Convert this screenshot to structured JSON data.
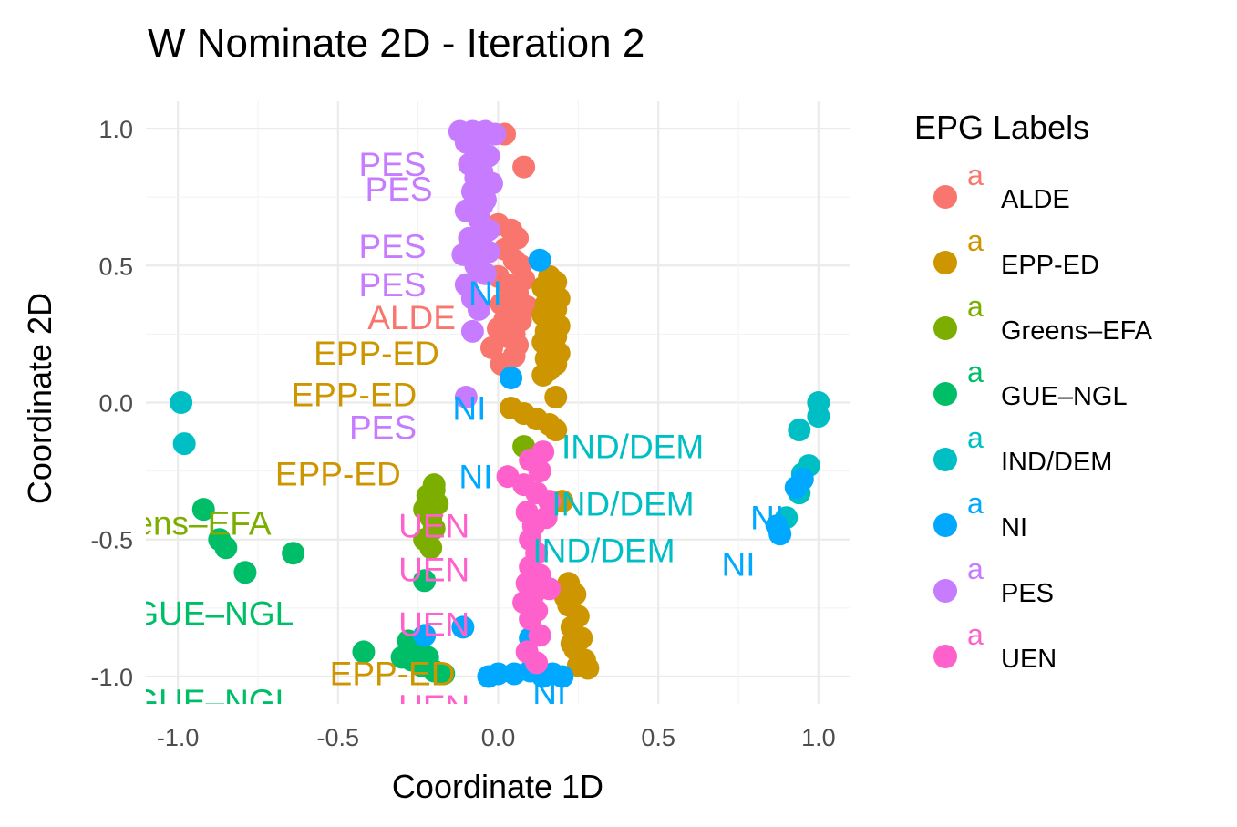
{
  "chart_data": {
    "type": "scatter",
    "title": "W Nominate 2D - Iteration 2",
    "xlabel": "Coordinate 1D",
    "ylabel": "Coordinate 2D",
    "xlim": [
      -1.1,
      1.1
    ],
    "ylim": [
      -1.1,
      1.1
    ],
    "xticks": [
      -1.0,
      -0.5,
      0.0,
      0.5,
      1.0
    ],
    "yticks": [
      -1.0,
      -0.5,
      0.0,
      0.5,
      1.0
    ],
    "xtick_labels": [
      "-1.0",
      "-0.5",
      "0.0",
      "0.5",
      "1.0"
    ],
    "ytick_labels": [
      "1.0",
      "0.5",
      "0.0",
      "-0.5",
      "-1.0"
    ],
    "grid": true,
    "legend": {
      "title": "EPG Labels",
      "placement": "right",
      "key_glyph": "a",
      "items": [
        {
          "name": "ALDE",
          "color": "#F8766D"
        },
        {
          "name": "EPP-ED",
          "color": "#CD9600"
        },
        {
          "name": "Greens–EFA",
          "color": "#7CAE00"
        },
        {
          "name": "GUE–NGL",
          "color": "#00BE67"
        },
        {
          "name": "IND/DEM",
          "color": "#00BFC4"
        },
        {
          "name": "NI",
          "color": "#00A9FF"
        },
        {
          "name": "PES",
          "color": "#C77CFF"
        },
        {
          "name": "UEN",
          "color": "#FF61CC"
        }
      ]
    },
    "series": [
      {
        "name": "ALDE",
        "color": "#F8766D",
        "points": [
          [
            0.02,
            0.98
          ],
          [
            0.08,
            0.86
          ],
          [
            0.0,
            0.65
          ],
          [
            0.04,
            0.63
          ],
          [
            0.06,
            0.6
          ],
          [
            0.02,
            0.56
          ],
          [
            0.05,
            0.52
          ],
          [
            0.07,
            0.5
          ],
          [
            0.0,
            0.46
          ],
          [
            0.03,
            0.43
          ],
          [
            0.06,
            0.4
          ],
          [
            0.01,
            0.36
          ],
          [
            0.04,
            0.33
          ],
          [
            0.07,
            0.3
          ],
          [
            0.0,
            0.27
          ],
          [
            0.03,
            0.24
          ],
          [
            0.06,
            0.21
          ],
          [
            -0.02,
            0.2
          ],
          [
            0.05,
            0.17
          ],
          [
            0.01,
            0.14
          ],
          [
            0.04,
            0.38
          ],
          [
            0.08,
            0.45
          ],
          [
            0.09,
            0.35
          ],
          [
            0.02,
            0.3
          ],
          [
            0.05,
            0.25
          ]
        ]
      },
      {
        "name": "EPP-ED",
        "color": "#CD9600",
        "points": [
          [
            0.16,
            0.46
          ],
          [
            0.18,
            0.44
          ],
          [
            0.14,
            0.42
          ],
          [
            0.17,
            0.4
          ],
          [
            0.19,
            0.38
          ],
          [
            0.15,
            0.36
          ],
          [
            0.18,
            0.34
          ],
          [
            0.14,
            0.32
          ],
          [
            0.17,
            0.3
          ],
          [
            0.19,
            0.28
          ],
          [
            0.15,
            0.26
          ],
          [
            0.18,
            0.24
          ],
          [
            0.14,
            0.22
          ],
          [
            0.17,
            0.2
          ],
          [
            0.19,
            0.18
          ],
          [
            0.15,
            0.16
          ],
          [
            0.18,
            0.14
          ],
          [
            0.16,
            0.12
          ],
          [
            0.14,
            0.1
          ],
          [
            0.18,
            0.02
          ],
          [
            0.04,
            -0.02
          ],
          [
            0.08,
            -0.04
          ],
          [
            0.12,
            -0.06
          ],
          [
            0.16,
            -0.08
          ],
          [
            0.18,
            -0.1
          ],
          [
            0.2,
            -0.36
          ],
          [
            0.22,
            -0.66
          ],
          [
            0.24,
            -0.7
          ],
          [
            0.22,
            -0.74
          ],
          [
            0.25,
            -0.78
          ],
          [
            0.23,
            -0.82
          ],
          [
            0.26,
            -0.86
          ],
          [
            0.24,
            -0.9
          ],
          [
            0.27,
            -0.94
          ],
          [
            0.25,
            -0.96
          ],
          [
            0.28,
            -0.97
          ],
          [
            0.21,
            -0.71
          ],
          [
            0.23,
            -0.88
          ]
        ]
      },
      {
        "name": "Greens–EFA",
        "color": "#7CAE00",
        "points": [
          [
            0.08,
            -0.16
          ],
          [
            -0.2,
            -0.3
          ],
          [
            -0.22,
            -0.34
          ],
          [
            -0.19,
            -0.37
          ],
          [
            -0.23,
            -0.39
          ],
          [
            -0.21,
            -0.42
          ],
          [
            -0.2,
            -0.46
          ],
          [
            -0.23,
            -0.5
          ],
          [
            -0.21,
            -0.53
          ],
          [
            -0.22,
            -0.36
          ],
          [
            -0.2,
            -0.32
          ]
        ]
      },
      {
        "name": "GUE–NGL",
        "color": "#00BE67",
        "points": [
          [
            -0.92,
            -0.39
          ],
          [
            -0.87,
            -0.5
          ],
          [
            -0.85,
            -0.53
          ],
          [
            -0.79,
            -0.62
          ],
          [
            -0.64,
            -0.55
          ],
          [
            -0.23,
            -0.65
          ],
          [
            -0.42,
            -0.91
          ],
          [
            -0.28,
            -0.87
          ],
          [
            -0.25,
            -0.89
          ],
          [
            -0.27,
            -0.94
          ],
          [
            -0.24,
            -0.96
          ],
          [
            -0.2,
            -0.98
          ],
          [
            -0.17,
            -0.99
          ],
          [
            -0.3,
            -0.93
          ],
          [
            -0.22,
            -0.93
          ]
        ]
      },
      {
        "name": "IND/DEM",
        "color": "#00BFC4",
        "points": [
          [
            -0.99,
            0.0
          ],
          [
            -0.98,
            -0.15
          ],
          [
            1.0,
            0.0
          ],
          [
            1.0,
            -0.05
          ],
          [
            0.94,
            -0.1
          ],
          [
            0.97,
            -0.23
          ],
          [
            0.95,
            -0.26
          ],
          [
            0.94,
            -0.33
          ],
          [
            0.9,
            -0.42
          ]
        ]
      },
      {
        "name": "NI",
        "color": "#00A9FF",
        "points": [
          [
            0.13,
            0.52
          ],
          [
            0.04,
            0.09
          ],
          [
            0.1,
            -0.86
          ],
          [
            -0.23,
            -0.85
          ],
          [
            -0.11,
            -0.82
          ],
          [
            0.0,
            -0.99
          ],
          [
            0.05,
            -0.99
          ],
          [
            0.1,
            -0.98
          ],
          [
            0.14,
            -1.0
          ],
          [
            0.17,
            -0.99
          ],
          [
            0.2,
            -1.0
          ],
          [
            -0.03,
            -1.0
          ],
          [
            0.12,
            -0.98
          ],
          [
            0.88,
            -0.48
          ],
          [
            0.87,
            -0.45
          ],
          [
            0.95,
            -0.28
          ],
          [
            0.93,
            -0.31
          ]
        ]
      },
      {
        "name": "PES",
        "color": "#C77CFF",
        "points": [
          [
            -0.12,
            0.99
          ],
          [
            -0.08,
            0.99
          ],
          [
            -0.04,
            0.99
          ],
          [
            -0.01,
            0.98
          ],
          [
            -0.1,
            0.95
          ],
          [
            -0.06,
            0.93
          ],
          [
            -0.03,
            0.9
          ],
          [
            -0.09,
            0.87
          ],
          [
            -0.05,
            0.84
          ],
          [
            -0.02,
            0.8
          ],
          [
            -0.08,
            0.77
          ],
          [
            -0.04,
            0.74
          ],
          [
            -0.1,
            0.7
          ],
          [
            -0.06,
            0.67
          ],
          [
            -0.03,
            0.63
          ],
          [
            -0.09,
            0.6
          ],
          [
            -0.05,
            0.57
          ],
          [
            -0.11,
            0.54
          ],
          [
            -0.07,
            0.5
          ],
          [
            -0.04,
            0.47
          ],
          [
            -0.1,
            0.43
          ],
          [
            -0.08,
            0.38
          ],
          [
            -0.06,
            0.34
          ],
          [
            -0.08,
            0.26
          ],
          [
            -0.1,
            0.02
          ],
          [
            -0.05,
            0.72
          ],
          [
            -0.07,
            0.82
          ],
          [
            -0.03,
            0.55
          ]
        ]
      },
      {
        "name": "UEN",
        "color": "#FF61CC",
        "points": [
          [
            0.14,
            -0.18
          ],
          [
            0.1,
            -0.21
          ],
          [
            0.13,
            -0.25
          ],
          [
            0.03,
            -0.27
          ],
          [
            0.08,
            -0.3
          ],
          [
            0.12,
            -0.33
          ],
          [
            0.16,
            -0.36
          ],
          [
            0.09,
            -0.4
          ],
          [
            0.11,
            -0.45
          ],
          [
            0.1,
            -0.5
          ],
          [
            0.12,
            -0.55
          ],
          [
            0.1,
            -0.6
          ],
          [
            0.13,
            -0.63
          ],
          [
            0.09,
            -0.66
          ],
          [
            0.11,
            -0.7
          ],
          [
            0.08,
            -0.73
          ],
          [
            0.12,
            -0.76
          ],
          [
            0.1,
            -0.79
          ],
          [
            0.13,
            -0.85
          ],
          [
            0.09,
            -0.91
          ],
          [
            0.12,
            -0.95
          ],
          [
            0.15,
            -0.42
          ],
          [
            0.16,
            -0.68
          ]
        ]
      }
    ],
    "annotations": [
      {
        "text": "PES",
        "x": -0.33,
        "y": 0.86,
        "color": "#C77CFF"
      },
      {
        "text": "PES",
        "x": -0.31,
        "y": 0.77,
        "color": "#C77CFF"
      },
      {
        "text": "PES",
        "x": -0.33,
        "y": 0.56,
        "color": "#C77CFF"
      },
      {
        "text": "PES",
        "x": -0.33,
        "y": 0.42,
        "color": "#C77CFF"
      },
      {
        "text": "NI",
        "x": -0.04,
        "y": 0.39,
        "color": "#00A9FF"
      },
      {
        "text": "ALDE",
        "x": -0.27,
        "y": 0.3,
        "color": "#F8766D"
      },
      {
        "text": "EPP-ED",
        "x": -0.38,
        "y": 0.17,
        "color": "#CD9600"
      },
      {
        "text": "EPP-ED",
        "x": -0.45,
        "y": 0.02,
        "color": "#CD9600"
      },
      {
        "text": "NI",
        "x": -0.09,
        "y": -0.03,
        "color": "#00A9FF"
      },
      {
        "text": "PES",
        "x": -0.36,
        "y": -0.1,
        "color": "#C77CFF"
      },
      {
        "text": "IND/DEM",
        "x": 0.42,
        "y": -0.17,
        "color": "#00BFC4"
      },
      {
        "text": "EPP-ED",
        "x": -0.5,
        "y": -0.27,
        "color": "#CD9600"
      },
      {
        "text": "NI",
        "x": -0.07,
        "y": -0.28,
        "color": "#00A9FF"
      },
      {
        "text": "IND/DEM",
        "x": 0.39,
        "y": -0.38,
        "color": "#00BFC4"
      },
      {
        "text": "Greens–EFA",
        "x": -1.01,
        "y": -0.45,
        "color": "#7CAE00"
      },
      {
        "text": "UEN",
        "x": -0.2,
        "y": -0.46,
        "color": "#FF61CC"
      },
      {
        "text": "NI",
        "x": 0.84,
        "y": -0.43,
        "color": "#00A9FF"
      },
      {
        "text": "IND/DEM",
        "x": 0.33,
        "y": -0.55,
        "color": "#00BFC4"
      },
      {
        "text": "UEN",
        "x": -0.2,
        "y": -0.62,
        "color": "#FF61CC"
      },
      {
        "text": "NI",
        "x": 0.75,
        "y": -0.6,
        "color": "#00A9FF"
      },
      {
        "text": "GUE–NGL",
        "x": -0.89,
        "y": -0.78,
        "color": "#00BE67"
      },
      {
        "text": "UEN",
        "x": -0.2,
        "y": -0.82,
        "color": "#FF61CC"
      },
      {
        "text": "EPP-ED",
        "x": -0.33,
        "y": -1.0,
        "color": "#CD9600"
      },
      {
        "text": "GUE–NGL",
        "x": -0.89,
        "y": -1.1,
        "color": "#00BE67"
      },
      {
        "text": "UEN",
        "x": -0.2,
        "y": -1.12,
        "color": "#FF61CC"
      },
      {
        "text": "NI",
        "x": 0.16,
        "y": -1.07,
        "color": "#00A9FF"
      }
    ]
  }
}
